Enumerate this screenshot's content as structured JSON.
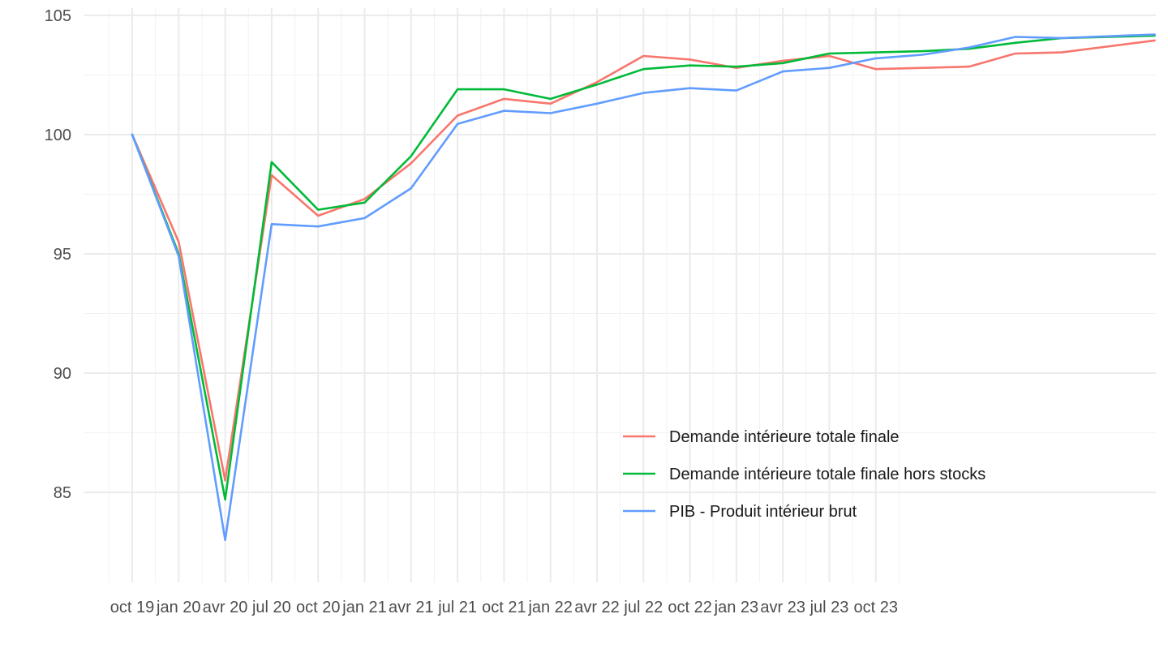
{
  "chart_data": {
    "type": "line",
    "title": "",
    "xlabel": "",
    "ylabel": "",
    "ylim": [
      82.8,
      105.5
    ],
    "yticks": [
      85,
      90,
      95,
      100,
      105
    ],
    "x": [
      "2019-10",
      "2020-01",
      "2020-04",
      "2020-07",
      "2020-10",
      "2021-01",
      "2021-04",
      "2021-07",
      "2021-10",
      "2022-01",
      "2022-04",
      "2022-07",
      "2022-10",
      "2023-01",
      "2023-04",
      "2023-07",
      "2023-10",
      "2024-01",
      "2024-04",
      "2024-07",
      "2024-10",
      "2025-01",
      "2025-04"
    ],
    "xticks": [
      {
        "date": "2019-10",
        "label": "oct 19"
      },
      {
        "date": "2020-01",
        "label": "jan 20"
      },
      {
        "date": "2020-04",
        "label": "avr 20"
      },
      {
        "date": "2020-07",
        "label": "jul 20"
      },
      {
        "date": "2020-10",
        "label": "oct 20"
      },
      {
        "date": "2021-01",
        "label": "jan 21"
      },
      {
        "date": "2021-04",
        "label": "avr 21"
      },
      {
        "date": "2021-07",
        "label": "jul 21"
      },
      {
        "date": "2021-10",
        "label": "oct 21"
      },
      {
        "date": "2022-01",
        "label": "jan 22"
      },
      {
        "date": "2022-04",
        "label": "avr 22"
      },
      {
        "date": "2022-07",
        "label": "jul 22"
      },
      {
        "date": "2022-10",
        "label": "oct 22"
      },
      {
        "date": "2023-01",
        "label": "jan 23"
      },
      {
        "date": "2023-04",
        "label": "avr 23"
      },
      {
        "date": "2023-07",
        "label": "jul 23"
      },
      {
        "date": "2023-10",
        "label": "oct 23"
      }
    ],
    "grid": true,
    "legend_position": "bottom-right",
    "series": [
      {
        "name": "Demande intérieure totale finale",
        "color": "#f8766d",
        "values": [
          100,
          95.5,
          85.5,
          98.3,
          96.6,
          97.3,
          98.8,
          100.8,
          101.5,
          101.3,
          102.2,
          103.3,
          103.15,
          102.8,
          103.1,
          103.3,
          102.75,
          102.8,
          102.85,
          103.4,
          103.45,
          null,
          103.95
        ]
      },
      {
        "name": "Demande intérieure totale finale hors stocks",
        "color": "#00ba38",
        "values": [
          100,
          95.0,
          84.7,
          98.85,
          96.85,
          97.15,
          99.1,
          101.9,
          101.9,
          101.5,
          102.1,
          102.75,
          102.9,
          102.85,
          103.0,
          103.4,
          103.45,
          103.5,
          103.6,
          103.85,
          104.05,
          null,
          104.15
        ]
      },
      {
        "name": "PIB - Produit intérieur brut",
        "color": "#619cff",
        "values": [
          100,
          94.9,
          83.0,
          96.25,
          96.15,
          96.5,
          97.75,
          100.45,
          101.0,
          100.9,
          101.3,
          101.75,
          101.95,
          101.85,
          102.65,
          102.8,
          103.2,
          103.35,
          103.65,
          104.1,
          104.05,
          null,
          104.2
        ]
      }
    ]
  }
}
